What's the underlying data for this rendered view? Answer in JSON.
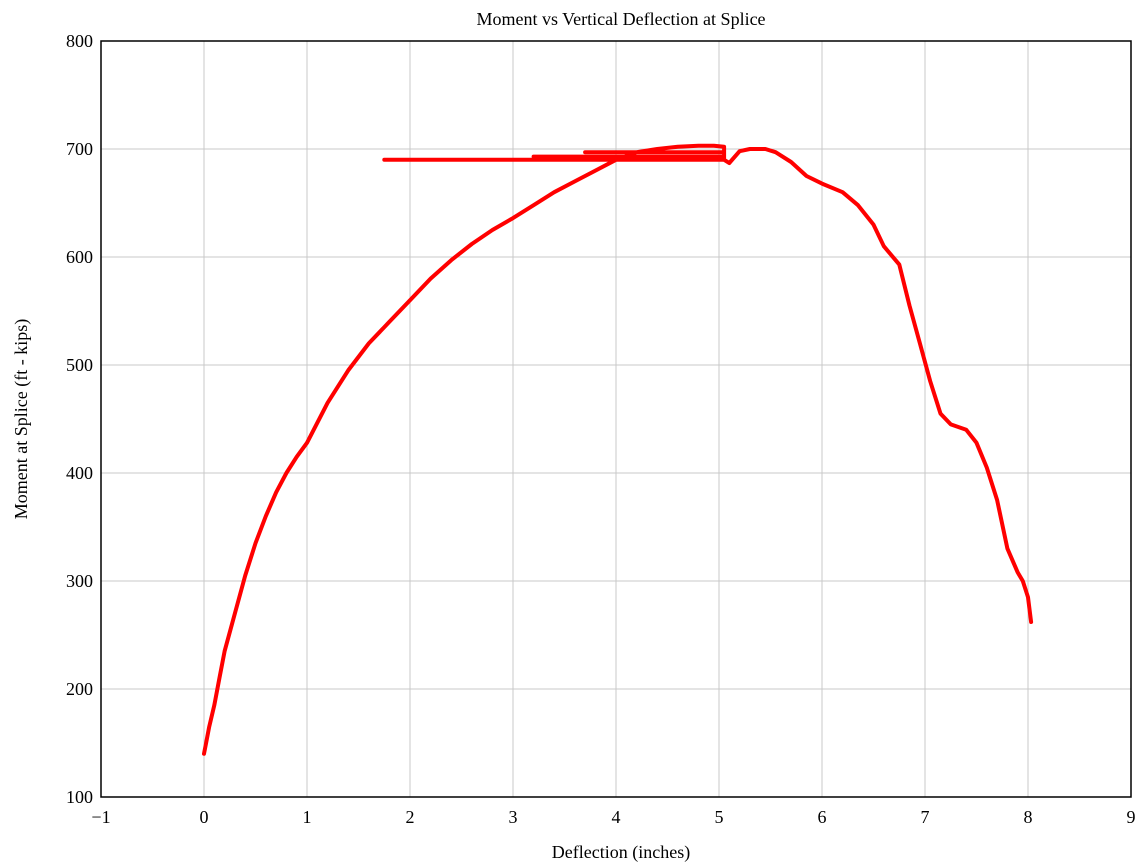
{
  "chart_data": {
    "type": "line",
    "title": "Moment vs Vertical Deflection at Splice",
    "xlabel": "Deflection (inches)",
    "ylabel": "Moment at Splice (ft - kips)",
    "xlim": [
      -1,
      9
    ],
    "ylim": [
      100,
      800
    ],
    "xticks": [
      "−1",
      "0",
      "1",
      "2",
      "3",
      "4",
      "5",
      "6",
      "7",
      "8",
      "9"
    ],
    "yticks": [
      "100",
      "200",
      "300",
      "400",
      "500",
      "600",
      "700",
      "800"
    ],
    "grid": true,
    "legend": "none",
    "series": [
      {
        "color": "#ff0000",
        "x": [
          0.0,
          0.02,
          0.05,
          0.1,
          0.15,
          0.2,
          0.3,
          0.4,
          0.5,
          0.6,
          0.7,
          0.8,
          0.9,
          1.0,
          1.2,
          1.4,
          1.6,
          1.8,
          2.0,
          2.2,
          2.4,
          2.6,
          2.8,
          3.0,
          3.2,
          3.4,
          3.6,
          3.8,
          4.0,
          4.2,
          4.4,
          4.6,
          4.8,
          4.95,
          5.05,
          5.05,
          1.75,
          1.75,
          5.05,
          5.05,
          3.2,
          3.2,
          5.05,
          5.05,
          3.7,
          3.7,
          5.05,
          5.05,
          5.1,
          5.2,
          5.3,
          5.45,
          5.55,
          5.7,
          5.85,
          6.0,
          6.2,
          6.35,
          6.5,
          6.6,
          6.75,
          6.85,
          6.95,
          7.05,
          7.15,
          7.25,
          7.4,
          7.5,
          7.6,
          7.7,
          7.8,
          7.9,
          7.95,
          8.0,
          8.03
        ],
        "y": [
          140,
          150,
          165,
          185,
          210,
          235,
          270,
          305,
          335,
          360,
          382,
          400,
          415,
          428,
          465,
          495,
          520,
          540,
          560,
          580,
          597,
          612,
          625,
          636,
          648,
          660,
          670,
          680,
          690,
          697,
          700,
          702,
          703,
          703,
          702,
          690,
          690,
          690,
          690,
          693,
          693,
          693,
          693,
          697,
          697,
          697,
          697,
          690,
          687,
          698,
          700,
          700,
          697,
          688,
          675,
          668,
          660,
          648,
          630,
          610,
          593,
          555,
          520,
          485,
          455,
          445,
          440,
          428,
          405,
          375,
          330,
          308,
          300,
          285,
          262
        ]
      }
    ]
  }
}
